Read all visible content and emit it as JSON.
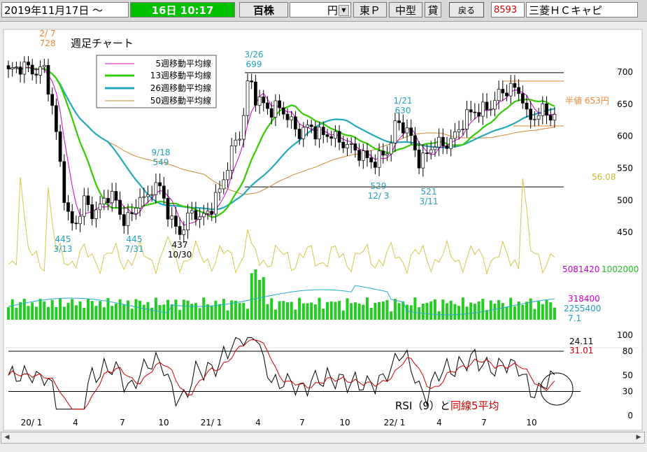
{
  "toolbar": {
    "date_from": "2019年11月17日 ～",
    "date_to": "16日 10:17",
    "unit": "百株",
    "currency": "円",
    "market": "東Ｐ",
    "size": "中型",
    "lend": "貸",
    "back_label": "戻る",
    "code": "8593",
    "company": "三菱ＨＣキャピ"
  },
  "chart": {
    "title": "週足チャート",
    "legend": [
      {
        "label": "5週移動平均線",
        "color": "#cc00cc"
      },
      {
        "label": "13週移動平均線",
        "color": "#33cc00"
      },
      {
        "label": "26週移動平均線",
        "color": "#22aabb"
      },
      {
        "label": "50週移動平均線",
        "color": "#cc8833"
      }
    ],
    "half_price_label": "半値 653円",
    "volume_ma_label": "56.08",
    "volume_labels": [
      "5081420",
      "1002000"
    ],
    "volume_sub_labels": [
      "318400",
      "2255400",
      "7.1"
    ],
    "rsi_value_labels": [
      "24.11",
      "31.01"
    ],
    "rsi_caption": "RSI（9）",
    "rsi_caption_conj": "と",
    "rsi_caption_red": "同線5平均"
  },
  "chart_data": {
    "type": "candlestick",
    "price_axis": {
      "ticks": [
        700,
        650,
        600,
        550,
        500,
        450
      ]
    },
    "rsi_axis": {
      "ticks": [
        100,
        80,
        50,
        30,
        0
      ]
    },
    "x_tick_labels": [
      "20/ 1",
      "4",
      "7",
      "10",
      "21/ 1",
      "4",
      "7",
      "10",
      "22/ 1",
      "4",
      "7",
      "10"
    ],
    "annotations": [
      {
        "date": "2/ 7",
        "value": "728"
      },
      {
        "date": "3/13",
        "value": "445"
      },
      {
        "date": "9/18",
        "value": "549"
      },
      {
        "date": "7/31",
        "value": "445"
      },
      {
        "date": "10/30",
        "value": "437"
      },
      {
        "date": "3/26",
        "value": "699"
      },
      {
        "date": "1/21",
        "value": "630"
      },
      {
        "date": "12/ 3",
        "value": "529"
      },
      {
        "date": "3/11",
        "value": "521"
      }
    ],
    "reference_lines": [
      699,
      521,
      686,
      616
    ],
    "rsi_reference_lines": [
      80,
      30
    ]
  },
  "colors": {
    "up_candle": "#ffffff",
    "down_candle": "#000000",
    "volume": "#22cc22",
    "volume_line": "#22aacc",
    "volume_ratio": "#d4c84a",
    "annotation": "#22a0bb",
    "rsi": "#000000",
    "rsi_ma": "#cc0000",
    "half_price": "#ee8833"
  }
}
